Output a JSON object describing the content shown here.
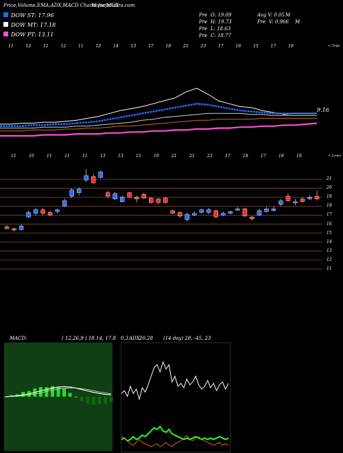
{
  "header": {
    "title": "Price,Volume,EMA,ADX,MACD Charts for MUX",
    "site": "MunafaSutra.com"
  },
  "legend": [
    {
      "label": "DOW ST: 17.96",
      "color": "#1e6cff"
    },
    {
      "label": "DOW MT: 17.18",
      "color": "#ffffff"
    },
    {
      "label": "DOW PT: 13.11",
      "color": "#ff4dd2"
    }
  ],
  "stats": {
    "row1": [
      "Pre",
      "O: 19.09",
      "Avg V: 0.05",
      "M"
    ],
    "row2": [
      "Pre",
      "H: 19.73",
      "Pre",
      "V: 0.966",
      "M"
    ],
    "row3": [
      "Pre",
      "L: 18.63"
    ],
    "row4": [
      "Pre",
      "C: 18.77"
    ]
  },
  "ema_panel": {
    "date_labels": [
      "11",
      "12",
      "11",
      "12",
      "11",
      "12",
      "14",
      "13",
      "17",
      "18",
      "25",
      "23",
      "17",
      "18",
      "15",
      "17",
      "19"
    ],
    "corner_label": "< Tops",
    "last_value": "9.16"
  },
  "candle_panel": {
    "date_labels": [
      "11",
      "10",
      "11",
      "11",
      "11",
      "13",
      "13",
      "15",
      "19",
      "21",
      "21",
      "23",
      "17",
      "18",
      "17",
      "18",
      "19"
    ],
    "corner_label": "< Lows",
    "y_labels": [
      "21",
      "20",
      "19",
      "18",
      "17",
      "16",
      "15",
      "14",
      "13",
      "12",
      "11"
    ]
  },
  "macd_panel": {
    "label": "MACD:",
    "params": "( 12,26,9 ) 18.14,  17.8",
    "extra": "0.3"
  },
  "adx_panel": {
    "label": "ADX:",
    "value": "20.28",
    "params": "(14 day) 28,  -45,  23"
  },
  "chart_data": {
    "type": "candlestick",
    "title": "Price,Volume,EMA,ADX,MACD Charts for MUX",
    "ylabel": "",
    "ylim": [
      11,
      22
    ],
    "y_ticks": [
      21,
      20,
      19,
      18,
      17,
      16,
      15,
      14,
      13,
      12,
      11
    ],
    "candles": [
      {
        "open": 15.7,
        "close": 15.5,
        "high": 15.9,
        "low": 15.4
      },
      {
        "open": 15.5,
        "close": 15.4,
        "high": 15.6,
        "low": 15.2
      },
      {
        "open": 15.4,
        "close": 15.8,
        "high": 16.0,
        "low": 15.3
      },
      {
        "open": 16.8,
        "close": 17.3,
        "high": 17.5,
        "low": 16.7
      },
      {
        "open": 17.2,
        "close": 17.6,
        "high": 17.8,
        "low": 17.0
      },
      {
        "open": 17.6,
        "close": 17.2,
        "high": 17.8,
        "low": 17.0
      },
      {
        "open": 17.3,
        "close": 17.0,
        "high": 17.5,
        "low": 16.9
      },
      {
        "open": 17.4,
        "close": 17.6,
        "high": 17.7,
        "low": 17.2
      },
      {
        "open": 18.0,
        "close": 18.6,
        "high": 18.9,
        "low": 17.9
      },
      {
        "open": 19.1,
        "close": 19.8,
        "high": 20.0,
        "low": 18.9
      },
      {
        "open": 19.5,
        "close": 19.9,
        "high": 20.1,
        "low": 19.2
      },
      {
        "open": 20.9,
        "close": 21.4,
        "high": 22.1,
        "low": 20.7
      },
      {
        "open": 21.3,
        "close": 20.6,
        "high": 21.6,
        "low": 20.5
      },
      {
        "open": 21.2,
        "close": 21.8,
        "high": 22.0,
        "low": 21.1
      },
      {
        "open": 19.5,
        "close": 19.1,
        "high": 19.7,
        "low": 18.9
      },
      {
        "open": 18.8,
        "close": 19.4,
        "high": 19.6,
        "low": 18.7
      },
      {
        "open": 18.5,
        "close": 19.0,
        "high": 19.2,
        "low": 18.4
      },
      {
        "open": 19.5,
        "close": 19.0,
        "high": 19.6,
        "low": 18.9
      },
      {
        "open": 19.0,
        "close": 18.8,
        "high": 19.2,
        "low": 18.4
      },
      {
        "open": 19.3,
        "close": 18.9,
        "high": 19.5,
        "low": 18.8
      },
      {
        "open": 18.9,
        "close": 18.4,
        "high": 19.0,
        "low": 18.3
      },
      {
        "open": 18.8,
        "close": 18.4,
        "high": 18.9,
        "low": 18.2
      },
      {
        "open": 18.9,
        "close": 18.4,
        "high": 19.0,
        "low": 18.3
      },
      {
        "open": 17.5,
        "close": 17.2,
        "high": 17.6,
        "low": 17.1
      },
      {
        "open": 17.3,
        "close": 16.9,
        "high": 17.4,
        "low": 16.7
      },
      {
        "open": 16.5,
        "close": 17.1,
        "high": 17.3,
        "low": 16.3
      },
      {
        "open": 17.0,
        "close": 17.2,
        "high": 17.4,
        "low": 16.9
      },
      {
        "open": 17.3,
        "close": 17.6,
        "high": 17.7,
        "low": 17.2
      },
      {
        "open": 17.3,
        "close": 17.6,
        "high": 17.8,
        "low": 17.1
      },
      {
        "open": 17.5,
        "close": 16.8,
        "high": 17.6,
        "low": 16.7
      },
      {
        "open": 17.0,
        "close": 17.2,
        "high": 17.4,
        "low": 16.9
      },
      {
        "open": 17.2,
        "close": 17.4,
        "high": 17.5,
        "low": 17.1
      },
      {
        "open": 17.6,
        "close": 17.7,
        "high": 17.9,
        "low": 17.5
      },
      {
        "open": 17.7,
        "close": 16.9,
        "high": 17.8,
        "low": 16.8
      },
      {
        "open": 16.8,
        "close": 16.6,
        "high": 16.9,
        "low": 16.4
      },
      {
        "open": 17.0,
        "close": 17.5,
        "high": 17.7,
        "low": 16.9
      },
      {
        "open": 17.4,
        "close": 17.7,
        "high": 17.9,
        "low": 17.3
      },
      {
        "open": 17.5,
        "close": 17.7,
        "high": 18.0,
        "low": 17.4
      },
      {
        "open": 18.2,
        "close": 18.6,
        "high": 18.8,
        "low": 18.0
      },
      {
        "open": 19.1,
        "close": 18.6,
        "high": 19.4,
        "low": 18.5
      },
      {
        "open": 18.5,
        "close": 18.5,
        "high": 18.8,
        "low": 18.1
      },
      {
        "open": 18.8,
        "close": 18.5,
        "high": 19.0,
        "low": 18.4
      },
      {
        "open": 18.8,
        "close": 19.0,
        "high": 19.2,
        "low": 18.7
      },
      {
        "open": 19.1,
        "close": 18.8,
        "high": 19.7,
        "low": 18.6
      }
    ],
    "ema_series": [
      {
        "color": "#ffffff",
        "values": [
          17.2,
          17.2,
          17.3,
          17.3,
          17.4,
          17.4,
          17.5,
          17.6,
          17.8,
          18.0,
          18.3,
          18.6,
          18.8,
          19.0,
          19.3,
          19.6,
          19.9,
          20.5,
          20.9,
          20.3,
          19.6,
          19.3,
          19.0,
          18.9,
          18.6,
          18.4,
          18.2,
          18.3,
          18.3,
          18.3
        ]
      },
      {
        "color": "#1e6cff",
        "values": [
          17.0,
          17.0,
          17.0,
          17.1,
          17.1,
          17.2,
          17.2,
          17.3,
          17.4,
          17.5,
          17.7,
          17.9,
          18.1,
          18.3,
          18.5,
          18.7,
          18.9,
          19.1,
          19.3,
          19.2,
          19.0,
          18.8,
          18.6,
          18.5,
          18.4,
          18.3,
          18.3,
          18.3,
          18.3,
          18.3
        ]
      },
      {
        "color": "#cfcfcf",
        "values": [
          16.8,
          16.8,
          16.8,
          16.8,
          16.9,
          16.9,
          16.9,
          17.0,
          17.0,
          17.1,
          17.2,
          17.3,
          17.4,
          17.6,
          17.7,
          17.9,
          18.0,
          18.1,
          18.2,
          18.3,
          18.3,
          18.3,
          18.3,
          18.2,
          18.2,
          18.1,
          18.1,
          18.1,
          18.1,
          18.1
        ]
      },
      {
        "color": "#d2691e",
        "values": [
          16.5,
          16.5,
          16.5,
          16.6,
          16.6,
          16.6,
          16.7,
          16.7,
          16.8,
          16.8,
          16.9,
          17.0,
          17.0,
          17.1,
          17.2,
          17.3,
          17.4,
          17.5,
          17.6,
          17.6,
          17.7,
          17.7,
          17.7,
          17.7,
          17.8,
          17.8,
          17.8,
          17.8,
          17.8,
          17.8
        ]
      },
      {
        "color": "#ff4dd2",
        "values": [
          16.0,
          16.0,
          16.0,
          16.0,
          16.1,
          16.1,
          16.1,
          16.2,
          16.2,
          16.2,
          16.3,
          16.3,
          16.4,
          16.4,
          16.5,
          16.5,
          16.6,
          16.6,
          16.7,
          16.7,
          16.8,
          16.8,
          16.9,
          16.9,
          17.0,
          17.0,
          17.1,
          17.1,
          17.2,
          17.3
        ]
      }
    ],
    "macd": {
      "macd_line": [
        0.0,
        0.05,
        0.1,
        0.2,
        0.3,
        0.45,
        0.6,
        0.75,
        0.9,
        1.0,
        1.05,
        1.0,
        0.9,
        0.75,
        0.6,
        0.45,
        0.35,
        0.25,
        0.2
      ],
      "signal_line": [
        0.0,
        0.02,
        0.05,
        0.1,
        0.18,
        0.28,
        0.4,
        0.55,
        0.68,
        0.8,
        0.88,
        0.92,
        0.9,
        0.85,
        0.75,
        0.62,
        0.5,
        0.4,
        0.3
      ],
      "histogram": [
        0.0,
        0.03,
        0.05,
        0.1,
        0.12,
        0.17,
        0.2,
        0.2,
        0.22,
        0.2,
        0.17,
        0.08,
        0.0,
        -0.1,
        -0.15,
        -0.17,
        -0.15,
        -0.15,
        -0.1
      ]
    },
    "adx": {
      "di_white": [
        40,
        42,
        38,
        45,
        40,
        43,
        36,
        44,
        41,
        46,
        52,
        58,
        60,
        55,
        62,
        57,
        60,
        48,
        52,
        45,
        47,
        44,
        50,
        46,
        48,
        52,
        46,
        43,
        45,
        49,
        44,
        47,
        42,
        46,
        48,
        43,
        47
      ],
      "adx_green": [
        8,
        9,
        7,
        8,
        10,
        8,
        9,
        11,
        10,
        12,
        14,
        16,
        15,
        17,
        14,
        13,
        15,
        12,
        11,
        10,
        9,
        8,
        9,
        8,
        9,
        10,
        9,
        8,
        9,
        8,
        9,
        8,
        9,
        10,
        9,
        8,
        9
      ],
      "di_orange": [
        10,
        9,
        7,
        5,
        4,
        6,
        8,
        6,
        5,
        4,
        3,
        4,
        5,
        3,
        4,
        6,
        4,
        3,
        5,
        6,
        7,
        9,
        11,
        8,
        7,
        9,
        10,
        8,
        7,
        6,
        5,
        4,
        5,
        6,
        4,
        5,
        4
      ]
    }
  }
}
